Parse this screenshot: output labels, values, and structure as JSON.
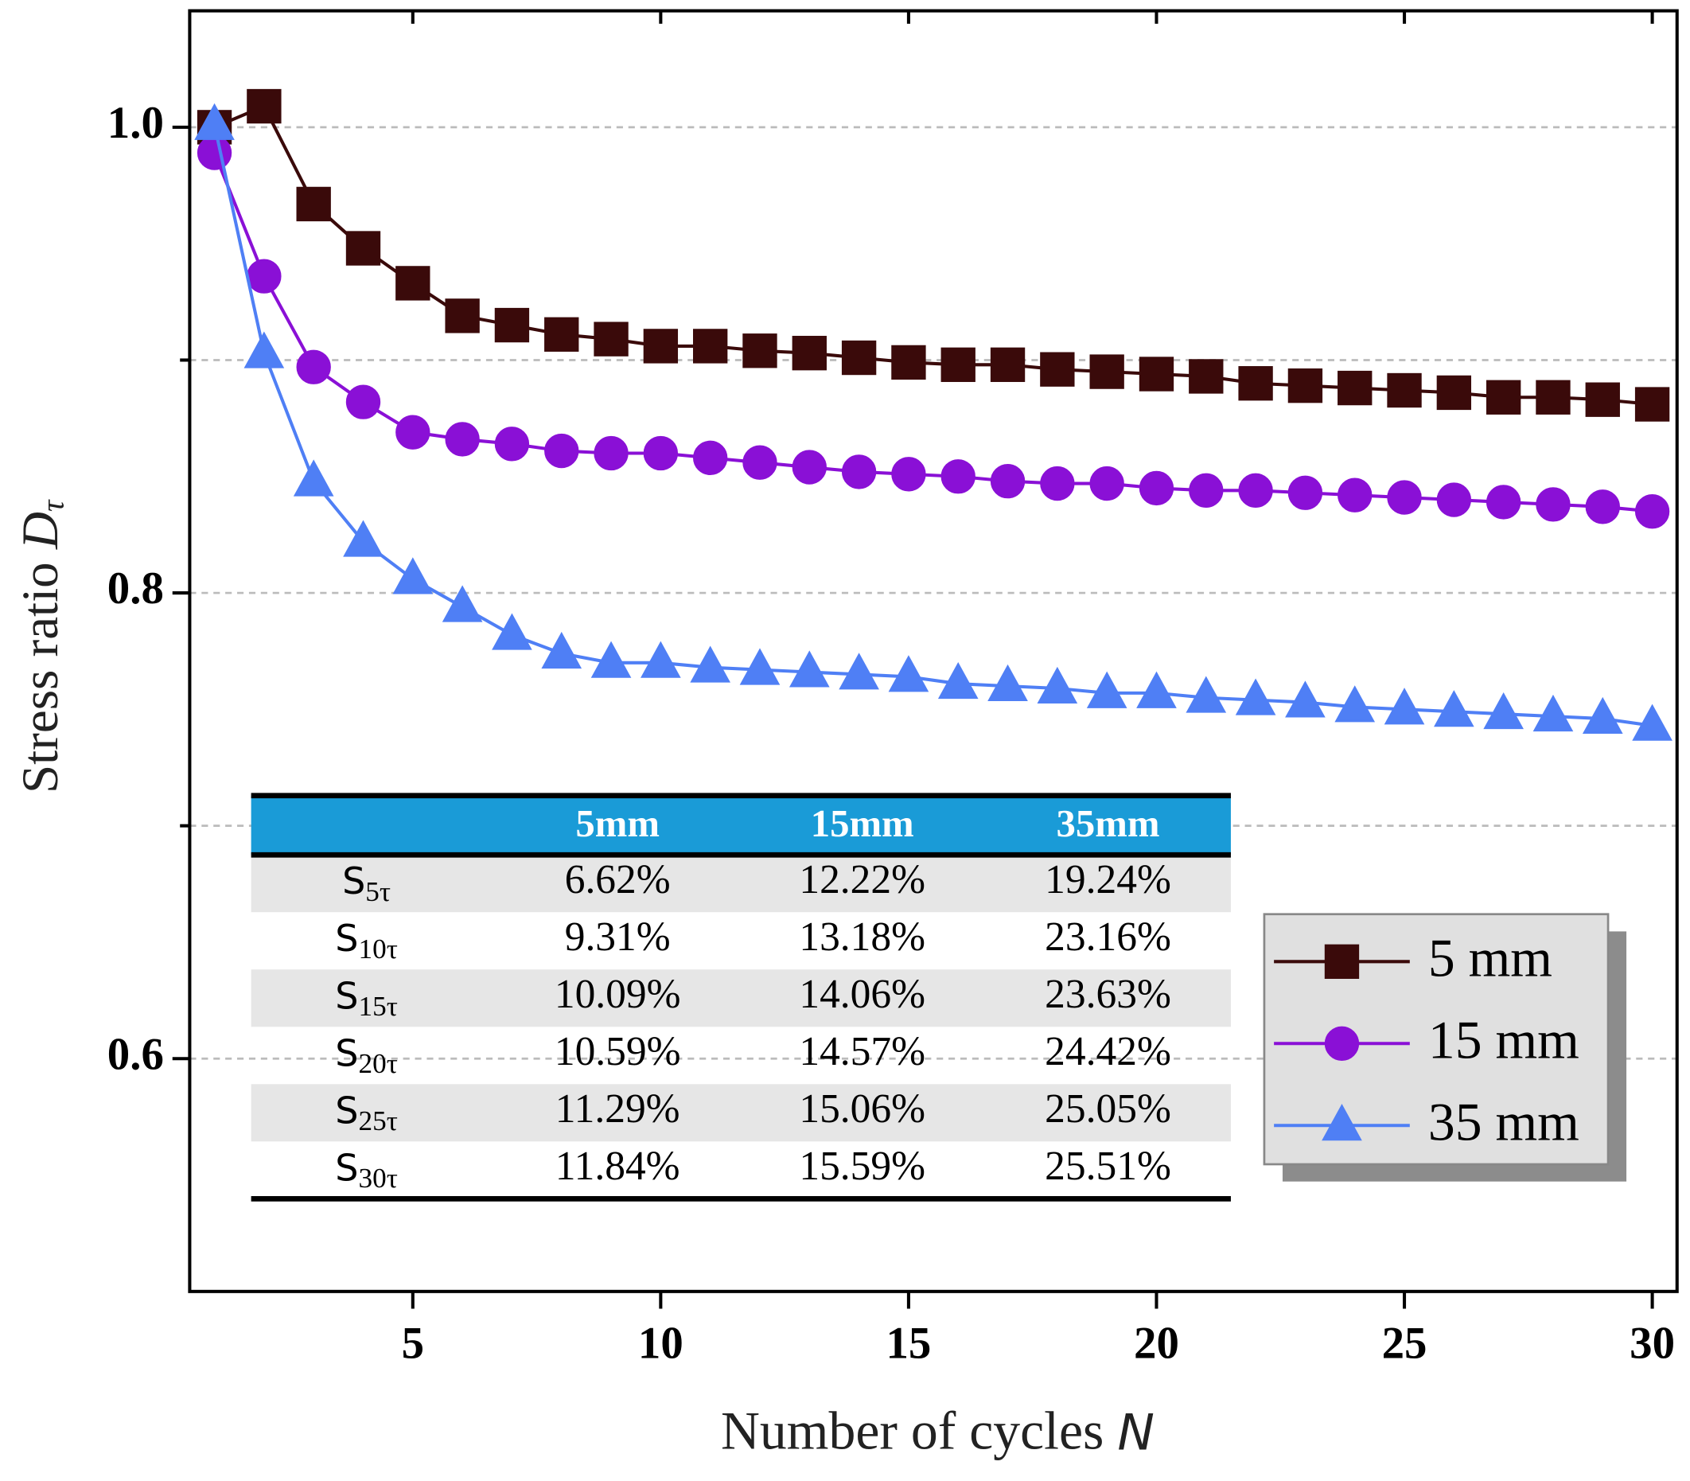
{
  "chart_data": {
    "type": "line",
    "x_label": "Number of cycles",
    "x_label_symbol": "N",
    "y_label": "Stress ratio",
    "y_label_symbol": "D",
    "y_label_subscript": "τ",
    "x": [
      1,
      2,
      3,
      4,
      5,
      6,
      7,
      8,
      9,
      10,
      11,
      12,
      13,
      14,
      15,
      16,
      17,
      18,
      19,
      20,
      21,
      22,
      23,
      24,
      25,
      26,
      27,
      28,
      29,
      30
    ],
    "xlim": [
      0.5,
      30.5
    ],
    "xticks": [
      5,
      10,
      15,
      20,
      25,
      30
    ],
    "ylim": [
      0.5,
      1.05
    ],
    "yticks": [
      {
        "value": 0.6,
        "label": "0.6"
      },
      {
        "value": 0.8,
        "label": "0.8"
      },
      {
        "value": 1.0,
        "label": "1.0"
      }
    ],
    "yticks_minor": [
      0.7,
      0.9
    ],
    "grid": true,
    "legend_position": "lower right",
    "series": [
      {
        "name": "5 mm",
        "color": "#3a0a0a",
        "marker": "square",
        "values": [
          1.0,
          1.009,
          0.967,
          0.948,
          0.933,
          0.919,
          0.915,
          0.911,
          0.909,
          0.906,
          0.906,
          0.904,
          0.903,
          0.901,
          0.899,
          0.898,
          0.898,
          0.896,
          0.895,
          0.894,
          0.893,
          0.89,
          0.889,
          0.888,
          0.887,
          0.886,
          0.884,
          0.884,
          0.883,
          0.881
        ]
      },
      {
        "name": "15 mm",
        "color": "#8a10d6",
        "marker": "circle",
        "values": [
          0.989,
          0.936,
          0.897,
          0.882,
          0.869,
          0.866,
          0.864,
          0.861,
          0.86,
          0.86,
          0.858,
          0.856,
          0.854,
          0.852,
          0.851,
          0.85,
          0.848,
          0.847,
          0.847,
          0.845,
          0.844,
          0.844,
          0.843,
          0.842,
          0.841,
          0.84,
          0.839,
          0.838,
          0.837,
          0.835
        ]
      },
      {
        "name": "35 mm",
        "color": "#4f7ff5",
        "marker": "triangle",
        "values": [
          1.001,
          0.903,
          0.848,
          0.822,
          0.806,
          0.794,
          0.782,
          0.774,
          0.77,
          0.77,
          0.768,
          0.767,
          0.766,
          0.765,
          0.764,
          0.761,
          0.76,
          0.759,
          0.757,
          0.757,
          0.755,
          0.754,
          0.753,
          0.751,
          0.75,
          0.749,
          0.748,
          0.747,
          0.746,
          0.743
        ]
      }
    ]
  },
  "table": {
    "header": [
      "5mm",
      "15mm",
      "35mm"
    ],
    "rows": [
      {
        "symbol": "S",
        "subscript": "5τ",
        "values": [
          "6.62%",
          "12.22%",
          "19.24%"
        ]
      },
      {
        "symbol": "S",
        "subscript": "10τ",
        "values": [
          "9.31%",
          "13.18%",
          "23.16%"
        ]
      },
      {
        "symbol": "S",
        "subscript": "15τ",
        "values": [
          "10.09%",
          "14.06%",
          "23.63%"
        ]
      },
      {
        "symbol": "S",
        "subscript": "20τ",
        "values": [
          "10.59%",
          "14.57%",
          "24.42%"
        ]
      },
      {
        "symbol": "S",
        "subscript": "25τ",
        "values": [
          "11.29%",
          "15.06%",
          "25.05%"
        ]
      },
      {
        "symbol": "S",
        "subscript": "30τ",
        "values": [
          "11.84%",
          "15.59%",
          "25.51%"
        ]
      }
    ]
  }
}
